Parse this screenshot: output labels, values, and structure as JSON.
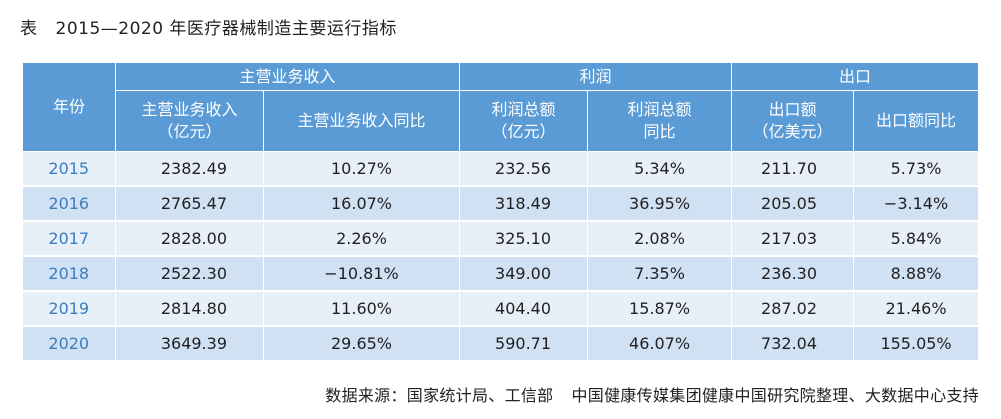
{
  "caption": {
    "prefix": "表",
    "title": "2015—2020 年医疗器械制造主要运行指标"
  },
  "table": {
    "year_header": "年份",
    "groups": [
      "主营业务收入",
      "利润",
      "出口"
    ],
    "subheaders": [
      "主营业务收入\n（亿元）",
      "主营业务收入同比",
      "利润总额\n（亿元）",
      "利润总额\n同比",
      "出口额\n（亿美元）",
      "出口额同比"
    ],
    "rows": [
      [
        "2015",
        "2382.49",
        "10.27%",
        "232.56",
        "5.34%",
        "211.70",
        "5.73%"
      ],
      [
        "2016",
        "2765.47",
        "16.07%",
        "318.49",
        "36.95%",
        "205.05",
        "−3.14%"
      ],
      [
        "2017",
        "2828.00",
        "2.26%",
        "325.10",
        "2.08%",
        "217.03",
        "5.84%"
      ],
      [
        "2018",
        "2522.30",
        "−10.81%",
        "349.00",
        "7.35%",
        "236.30",
        "8.88%"
      ],
      [
        "2019",
        "2814.80",
        "11.60%",
        "404.40",
        "15.87%",
        "287.02",
        "21.46%"
      ],
      [
        "2020",
        "3649.39",
        "29.65%",
        "590.71",
        "46.07%",
        "732.04",
        "155.05%"
      ]
    ],
    "colors": {
      "header_bg": "#5b9bd5",
      "row_light": "#e7f0f9",
      "row_dark": "#cfe1f2",
      "year_text": "#3c7dbf"
    }
  },
  "source": {
    "label": "数据来源：国家统计局、工信部",
    "org": "中国健康传媒集团健康中国研究院整理、大数据中心支持"
  }
}
